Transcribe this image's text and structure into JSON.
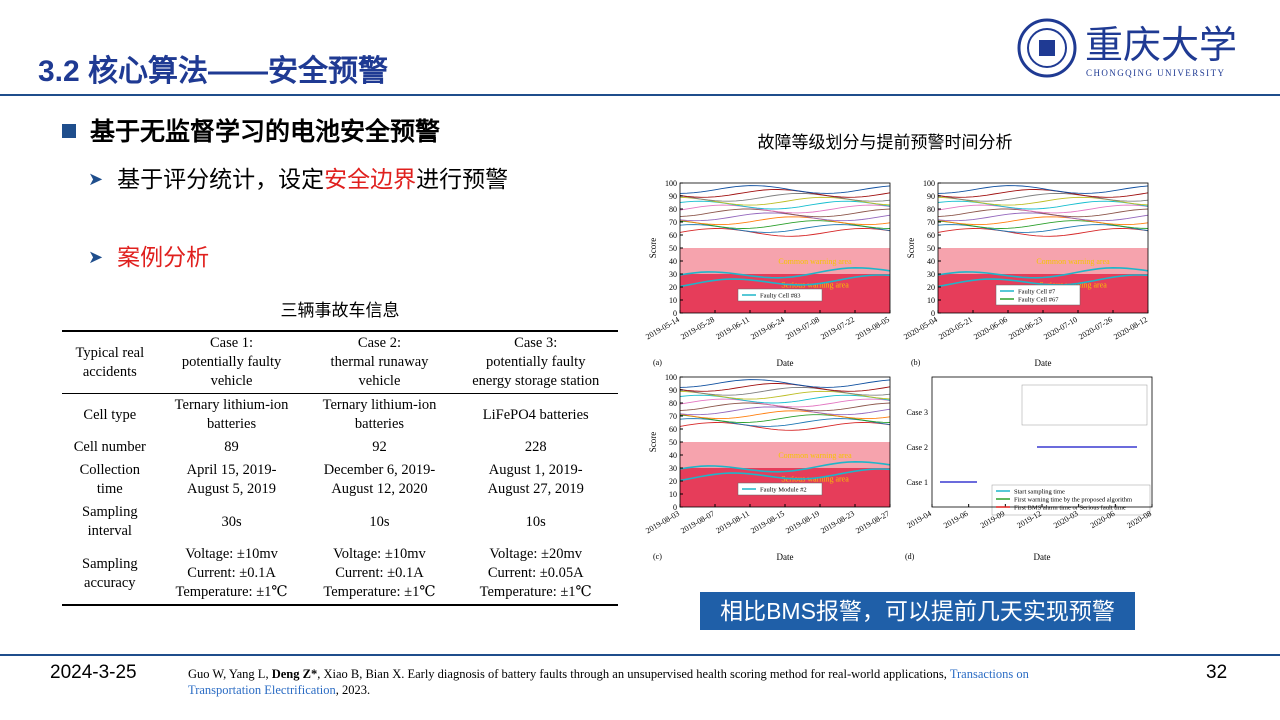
{
  "header": {
    "title": "3.2 核心算法——安全预警",
    "logo_cn": "重庆大学",
    "logo_en": "CHONGQING UNIVERSITY"
  },
  "bullets": {
    "main": "基于无监督学习的电池安全预警",
    "sub1": [
      "基于评分统计，设定",
      "安全边界",
      "进行预警"
    ],
    "sub2": "案例分析"
  },
  "table": {
    "caption": "三辆事故车信息",
    "header": [
      "Typical real\naccidents",
      "Case 1:\npotentially faulty\nvehicle",
      "Case 2:\nthermal runaway\nvehicle",
      "Case 3:\npotentially faulty\nenergy storage station"
    ],
    "rows": [
      [
        "Cell type",
        "Ternary lithium-ion\nbatteries",
        "Ternary lithium-ion\nbatteries",
        "LiFePO4 batteries"
      ],
      [
        "Cell number",
        "89",
        "92",
        "228"
      ],
      [
        "Collection\ntime",
        "April 15, 2019-\nAugust 5, 2019",
        "December 6, 2019-\nAugust 12, 2020",
        "August 1, 2019-\nAugust 27, 2019"
      ],
      [
        "Sampling\ninterval",
        "30s",
        "10s",
        "10s"
      ],
      [
        "Sampling\naccuracy",
        "Voltage: ±10mv\nCurrent: ±0.1A\nTemperature: ±1℃",
        "Voltage: ±10mv\nCurrent: ±0.1A\nTemperature: ±1℃",
        "Voltage: ±20mv\nCurrent: ±0.05A\nTemperature: ±1℃"
      ]
    ]
  },
  "figure": {
    "title": "故障等级划分与提前预警时间分析",
    "panels": [
      {
        "label": "(a)",
        "y_label": "Score",
        "x_label": "Date",
        "yticks": [
          0,
          10,
          20,
          30,
          40,
          50,
          60,
          70,
          80,
          90,
          100
        ],
        "xticks": [
          "2019-05-14",
          "2019-05-28",
          "2019-06-11",
          "2019-06-24",
          "2019-07-08",
          "2019-07-22",
          "2019-08-05"
        ],
        "bands": [
          "Common warning area",
          "Serious warning area"
        ],
        "legend": [
          "Faulty Cell #83"
        ]
      },
      {
        "label": "(b)",
        "y_label": "Score",
        "x_label": "Date",
        "yticks": [
          0,
          10,
          20,
          30,
          40,
          50,
          60,
          70,
          80,
          90,
          100
        ],
        "xticks": [
          "2020-05-04",
          "2020-05-21",
          "2020-06-06",
          "2020-06-23",
          "2020-07-10",
          "2020-07-26",
          "2020-08-12"
        ],
        "bands": [
          "Common warning area",
          "Serious warning area"
        ],
        "legend": [
          "Faulty Cell #7",
          "Faulty Cell #67"
        ]
      },
      {
        "label": "(c)",
        "y_label": "Score",
        "x_label": "Date",
        "yticks": [
          0,
          10,
          20,
          30,
          40,
          50,
          60,
          70,
          80,
          90,
          100
        ],
        "xticks": [
          "2019-08-03",
          "2019-08-07",
          "2019-08-11",
          "2019-08-15",
          "2019-08-19",
          "2019-08-23",
          "2019-08-27"
        ],
        "bands": [
          "Common warning area",
          "Serious warning area"
        ],
        "legend": [
          "Faulty Module #2"
        ]
      },
      {
        "label": "(d)",
        "x_label": "Date",
        "cases": [
          "Case 3",
          "Case 2",
          "Case 1"
        ],
        "xticks": [
          "2019-04",
          "2019-06",
          "2019-09",
          "2019-12",
          "2020-03",
          "2020-06",
          "2020-08"
        ],
        "legend": [
          "Start sampling time",
          "First warning time by the proposed algorithm",
          "First BMS alarm time or Serious fault time"
        ]
      }
    ]
  },
  "callout": "相比BMS报警，可以提前几天实现预警",
  "footer": {
    "date": "2024-3-25",
    "citation": [
      "Guo W, Yang L, ",
      "Deng Z*",
      ", Xiao B, Bian X. Early diagnosis of battery faults through an unsupervised health scoring method for real-world applications, ",
      "Transactions on Transportation Electrification",
      ", 2023."
    ],
    "page": "32"
  }
}
